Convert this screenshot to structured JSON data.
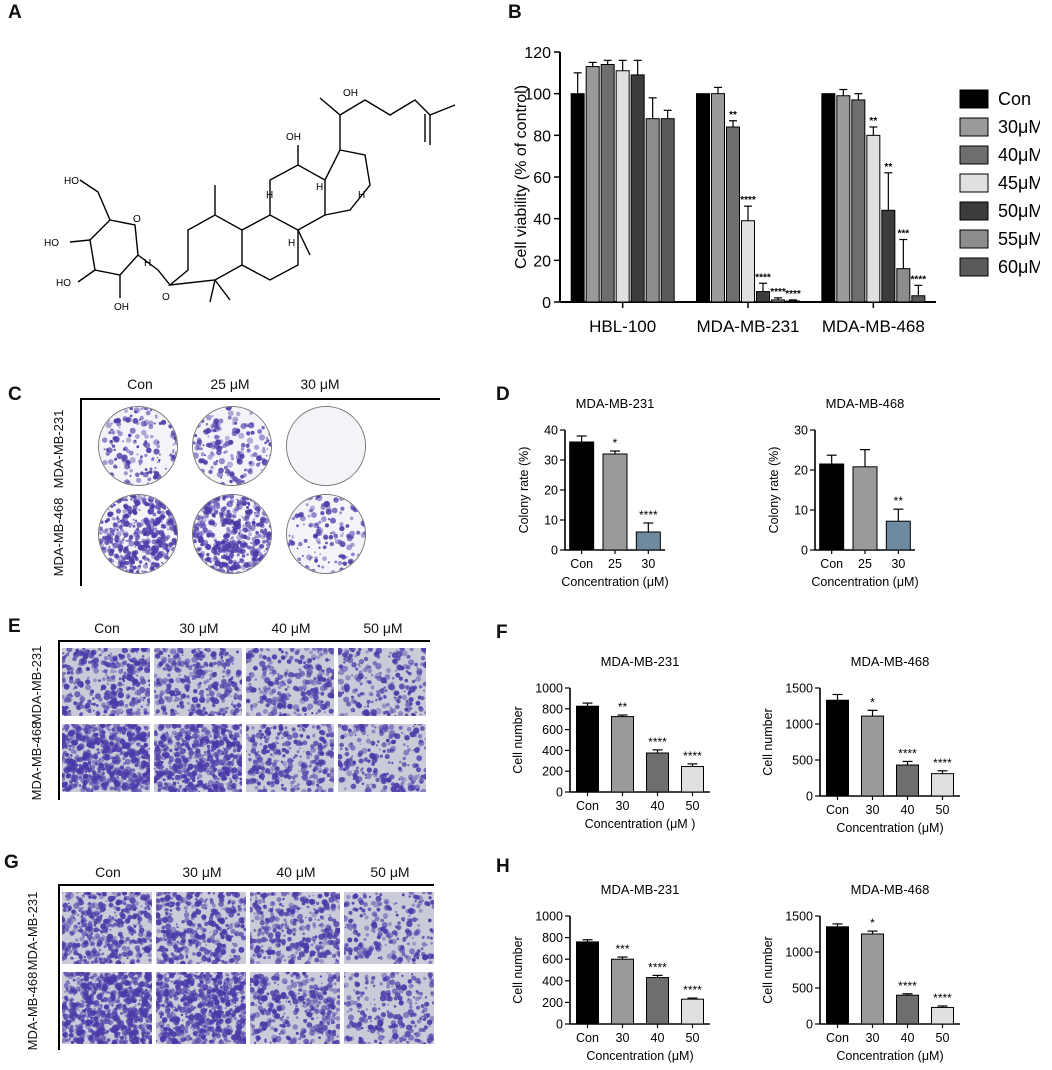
{
  "panels": {
    "a": "A",
    "b": "B",
    "c": "C",
    "d": "D",
    "e": "E",
    "f": "F",
    "g": "G",
    "h": "H"
  },
  "colors": {
    "black": "#000000",
    "gray": "#9a9a9a",
    "darkgray": "#6e6e6e",
    "light": "#e0e0e0",
    "steel": "#6e8aa0",
    "stain": "#4a3aa8"
  },
  "structure": {
    "labels": [
      "OH",
      "OH",
      "H",
      "H",
      "H",
      "H",
      "HO",
      "HO",
      "HO",
      "OH",
      "O",
      "H",
      "O"
    ]
  },
  "panel_c": {
    "col_headers": [
      "Con",
      "25 μM",
      "30 μM"
    ],
    "row_labels": [
      "MDA-MB-231",
      "MDA-MB-468"
    ],
    "colony_density": [
      [
        0.35,
        0.35,
        0.0
      ],
      [
        0.9,
        0.95,
        0.3
      ]
    ]
  },
  "panel_e": {
    "col_headers": [
      "Con",
      "30 μM",
      "40 μM",
      "50 μM"
    ],
    "row_labels": [
      "MDA-MB-231",
      "MDA-MB-468"
    ],
    "cell_density": [
      [
        0.5,
        0.45,
        0.35,
        0.3
      ],
      [
        0.9,
        0.75,
        0.45,
        0.3
      ]
    ]
  },
  "panel_g": {
    "col_headers": [
      "Con",
      "30 μM",
      "40 μM",
      "50 μM"
    ],
    "row_labels": [
      "MDA-MB-231",
      "MDA-MB-468"
    ],
    "cell_density": [
      [
        0.55,
        0.5,
        0.45,
        0.3
      ],
      [
        0.9,
        0.85,
        0.45,
        0.3
      ]
    ]
  },
  "chart_data": [
    {
      "id": "B",
      "type": "bar",
      "title": "",
      "xlabel": "",
      "ylabel": "Cell viability (% of control)",
      "ylim": [
        0,
        120
      ],
      "yticks": [
        0,
        20,
        40,
        60,
        80,
        100,
        120
      ],
      "legend_position": "right",
      "categories": [
        "HBL-100",
        "MDA-MB-231",
        "MDA-MB-468"
      ],
      "series": [
        {
          "name": "Con",
          "color": "#000000",
          "values": [
            100,
            100,
            100
          ],
          "err": [
            10,
            0,
            0
          ],
          "sig": [
            "",
            "",
            ""
          ]
        },
        {
          "name": "30μM",
          "color": "#9a9a9a",
          "values": [
            113,
            100,
            99
          ],
          "err": [
            2,
            3,
            3
          ],
          "sig": [
            "",
            "",
            ""
          ]
        },
        {
          "name": "40μM",
          "color": "#6e6e6e",
          "values": [
            114,
            84,
            97
          ],
          "err": [
            2,
            3,
            3
          ],
          "sig": [
            "",
            "**",
            ""
          ]
        },
        {
          "name": "45μM",
          "color": "#e0e0e0",
          "values": [
            111,
            39,
            80
          ],
          "err": [
            5,
            7,
            4
          ],
          "sig": [
            "",
            "****",
            "**"
          ]
        },
        {
          "name": "50μM",
          "color": "#3c3c3c",
          "values": [
            109,
            5,
            44
          ],
          "err": [
            7,
            4,
            18
          ],
          "sig": [
            "",
            "****",
            "**"
          ]
        },
        {
          "name": "55μM",
          "color": "#8c8c8c",
          "values": [
            88,
            1,
            16
          ],
          "err": [
            10,
            1,
            14
          ],
          "sig": [
            "",
            "****",
            "***"
          ]
        },
        {
          "name": "60μM",
          "color": "#5a5a5a",
          "values": [
            88,
            0.5,
            3
          ],
          "err": [
            4,
            0.5,
            5
          ],
          "sig": [
            "",
            "****",
            "****"
          ]
        }
      ]
    },
    {
      "id": "D1",
      "type": "bar",
      "title": "MDA-MB-231",
      "xlabel": "Concentration (μM)",
      "ylabel": "Colony rate  (%)",
      "ylim": [
        0,
        40
      ],
      "yticks": [
        0,
        10,
        20,
        30,
        40
      ],
      "categories": [
        "Con",
        "25",
        "30"
      ],
      "values": [
        36,
        32,
        6
      ],
      "err": [
        2,
        1,
        3
      ],
      "sig": [
        "",
        "*",
        "****"
      ],
      "colors": [
        "#000000",
        "#9a9a9a",
        "#6e8aa0"
      ]
    },
    {
      "id": "D2",
      "type": "bar",
      "title": "MDA-MB-468",
      "xlabel": "Concentration (μM)",
      "ylabel": "Colony rate  (%)",
      "ylim": [
        0,
        30
      ],
      "yticks": [
        0,
        10,
        20,
        30
      ],
      "categories": [
        "Con",
        "25",
        "30"
      ],
      "values": [
        21.5,
        20.8,
        7.2
      ],
      "err": [
        2.2,
        4.3,
        3
      ],
      "sig": [
        "",
        "",
        "**"
      ],
      "colors": [
        "#000000",
        "#9a9a9a",
        "#6e8aa0"
      ]
    },
    {
      "id": "F1",
      "type": "bar",
      "title": "MDA-MB-231",
      "xlabel": "Concentration (μM )",
      "ylabel": "Cell number",
      "ylim": [
        0,
        1000
      ],
      "yticks": [
        0,
        200,
        400,
        600,
        800,
        1000
      ],
      "categories": [
        "Con",
        "30",
        "40",
        "50"
      ],
      "values": [
        825,
        725,
        375,
        245
      ],
      "err": [
        30,
        15,
        30,
        25
      ],
      "sig": [
        "",
        "**",
        "****",
        "****"
      ],
      "colors": [
        "#000000",
        "#9a9a9a",
        "#6e6e6e",
        "#e0e0e0"
      ]
    },
    {
      "id": "F2",
      "type": "bar",
      "title": "MDA-MB-468",
      "xlabel": "Concentration (μM)",
      "ylabel": "Cell number",
      "ylim": [
        0,
        1500
      ],
      "yticks": [
        0,
        500,
        1000,
        1500
      ],
      "categories": [
        "Con",
        "30",
        "40",
        "50"
      ],
      "values": [
        1330,
        1110,
        430,
        310
      ],
      "err": [
        80,
        80,
        50,
        40
      ],
      "sig": [
        "",
        "*",
        "****",
        "****"
      ],
      "colors": [
        "#000000",
        "#9a9a9a",
        "#6e6e6e",
        "#e0e0e0"
      ]
    },
    {
      "id": "H1",
      "type": "bar",
      "title": "MDA-MB-231",
      "xlabel": "Concentration (μM)",
      "ylabel": "Cell number",
      "ylim": [
        0,
        1000
      ],
      "yticks": [
        0,
        200,
        400,
        600,
        800,
        1000
      ],
      "categories": [
        "Con",
        "30",
        "40",
        "50"
      ],
      "values": [
        760,
        600,
        430,
        230
      ],
      "err": [
        20,
        20,
        20,
        10
      ],
      "sig": [
        "",
        "***",
        "****",
        "****"
      ],
      "colors": [
        "#000000",
        "#9a9a9a",
        "#6e6e6e",
        "#e0e0e0"
      ]
    },
    {
      "id": "H2",
      "type": "bar",
      "title": "MDA-MB-468",
      "xlabel": "Concentration (μM)",
      "ylabel": "Cell number",
      "ylim": [
        0,
        1500
      ],
      "yticks": [
        0,
        500,
        1000,
        1500
      ],
      "categories": [
        "Con",
        "30",
        "40",
        "50"
      ],
      "values": [
        1350,
        1250,
        400,
        230
      ],
      "err": [
        40,
        40,
        20,
        20
      ],
      "sig": [
        "",
        "*",
        "****",
        "****"
      ],
      "colors": [
        "#000000",
        "#9a9a9a",
        "#6e6e6e",
        "#e0e0e0"
      ]
    }
  ]
}
